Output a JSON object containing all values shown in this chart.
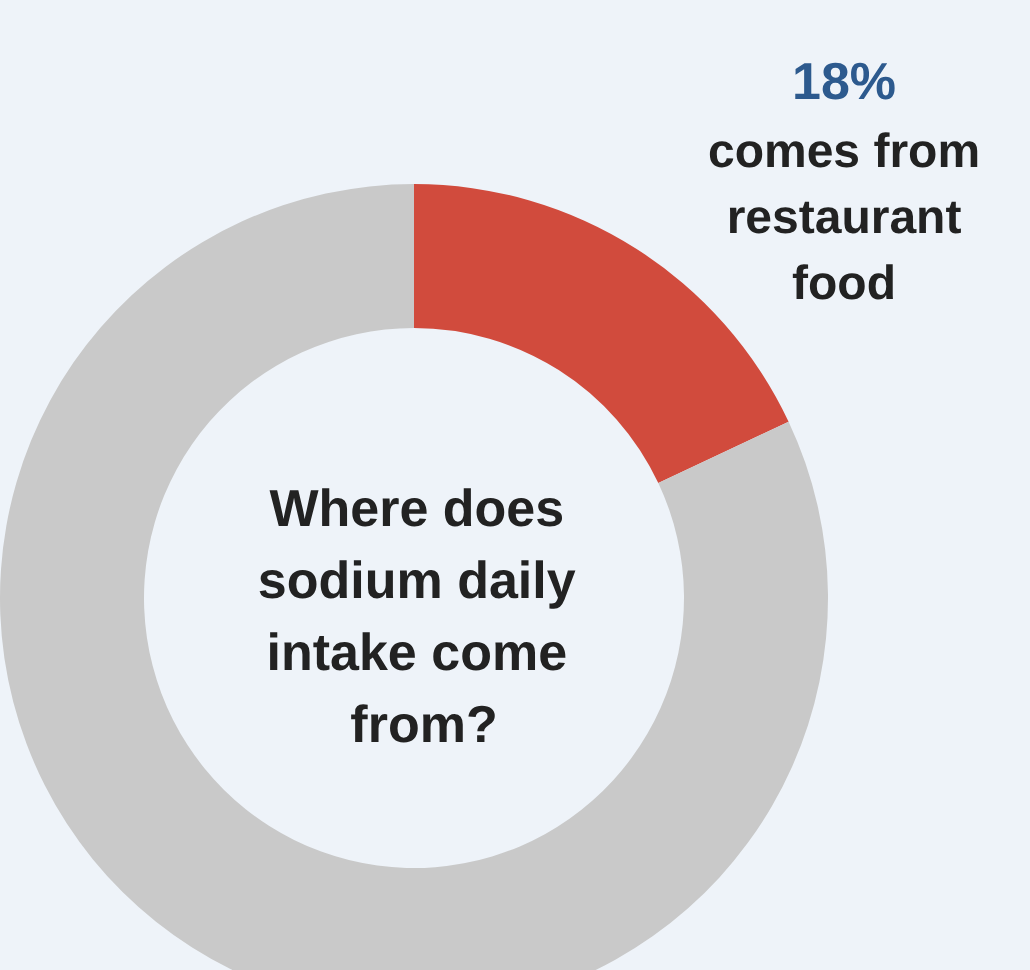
{
  "chart_data": {
    "type": "donut",
    "title": "Where does sodium daily intake come from?",
    "categories": [
      "comes from restaurant food",
      null
    ],
    "values": [
      18,
      82
    ],
    "colors": [
      "#d14b3d",
      "#c9c9c9"
    ],
    "value_labels": [
      "18%",
      null
    ]
  }
}
